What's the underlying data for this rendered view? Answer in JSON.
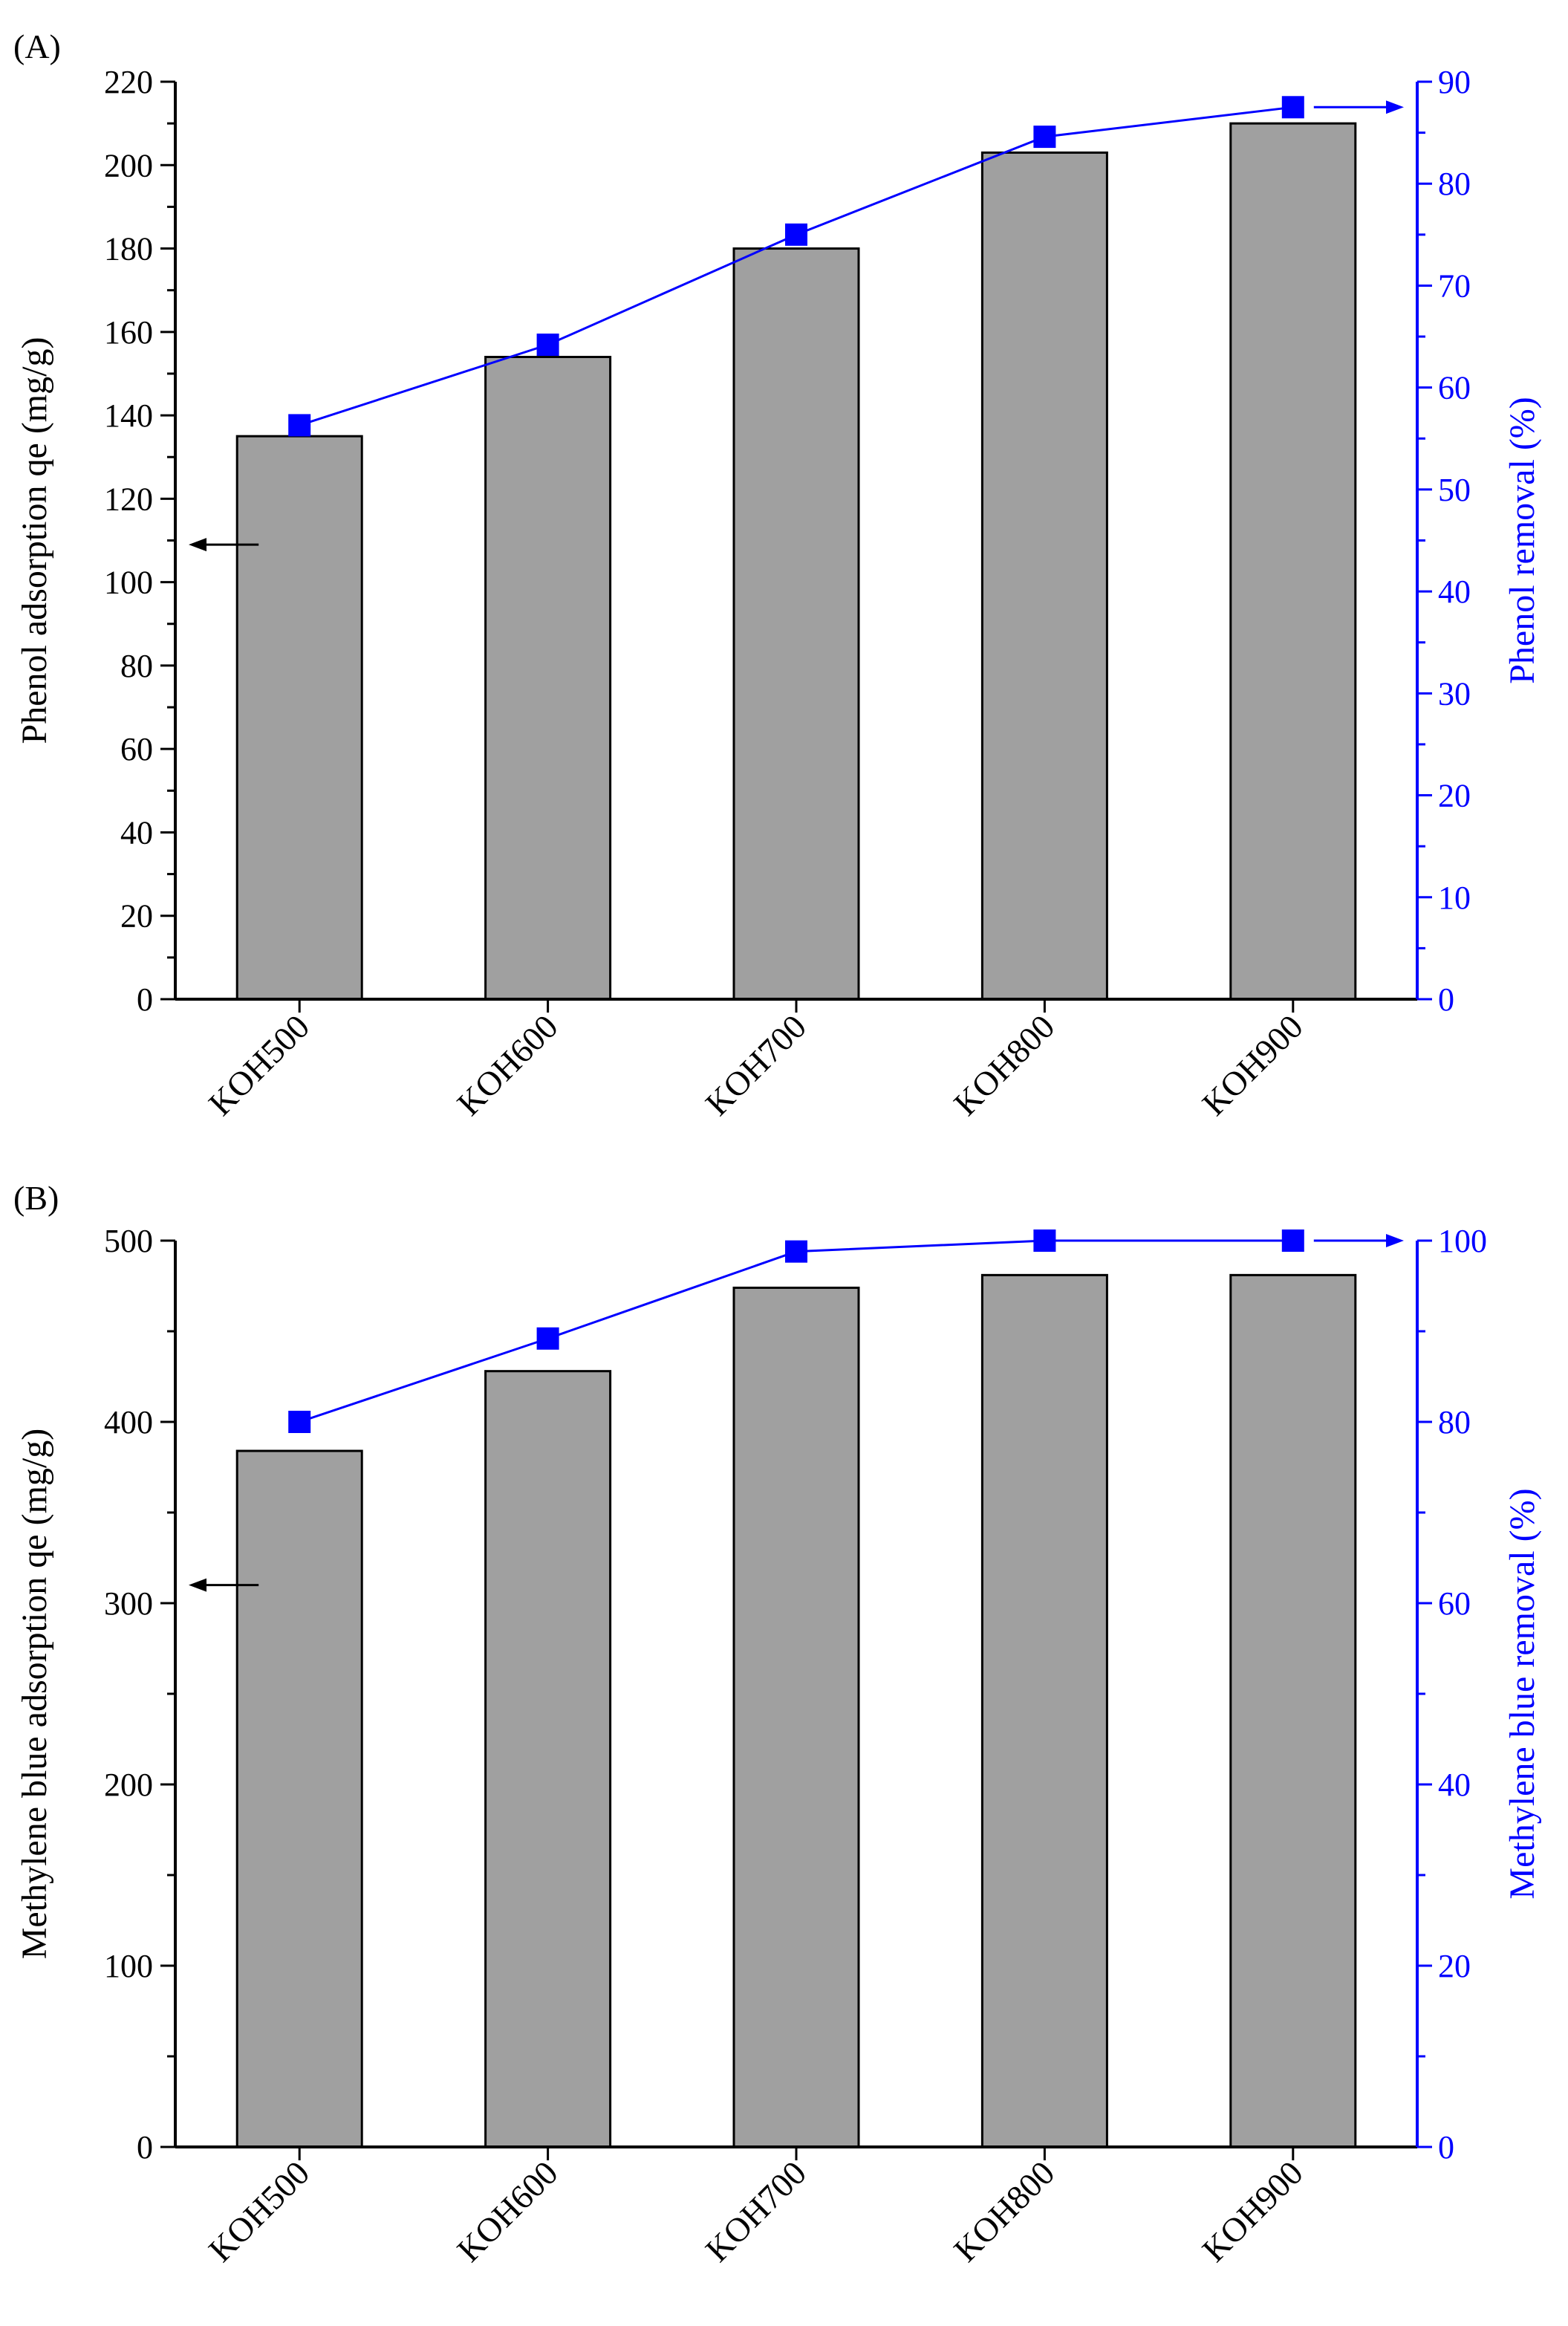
{
  "colors": {
    "bar": "#a0a0a0",
    "bar_edge": "#000000",
    "line": "#0000ff",
    "axis_left": "#000000",
    "axis_right": "#0000ff"
  },
  "chart_data": [
    {
      "panel_label": "(A)",
      "type": "bar",
      "categories": [
        "KOH500",
        "KOH600",
        "KOH700",
        "KOH800",
        "KOH900"
      ],
      "series": [
        {
          "name": "Phenol adsorption qe (mg/g)",
          "axis": "left",
          "type": "bar",
          "values": [
            135,
            154,
            180,
            203,
            210
          ]
        },
        {
          "name": "Phenol removal (%)",
          "axis": "right",
          "type": "line",
          "values": [
            56.3,
            64.2,
            75.0,
            84.6,
            87.5
          ]
        }
      ],
      "ylabel": "Phenol adsorption qe (mg/g)",
      "ylabel_right": "Phenol removal (%)",
      "ylim": [
        0,
        220
      ],
      "ylim_right": [
        0,
        90
      ],
      "yticks": [
        0,
        20,
        40,
        60,
        80,
        100,
        120,
        140,
        160,
        180,
        200,
        220
      ],
      "yticks_right": [
        0,
        10,
        20,
        30,
        40,
        50,
        60,
        70,
        80,
        90
      ],
      "annotations": [
        {
          "type": "arrow",
          "direction": "left",
          "at_category": 0,
          "at_value": 109,
          "axis": "left"
        },
        {
          "type": "arrow",
          "direction": "right",
          "at_category": 4,
          "at_value": 87.5,
          "axis": "right"
        }
      ]
    },
    {
      "panel_label": "(B)",
      "type": "bar",
      "categories": [
        "KOH500",
        "KOH600",
        "KOH700",
        "KOH800",
        "KOH900"
      ],
      "series": [
        {
          "name": "Methylene blue adsorption qe (mg/g)",
          "axis": "left",
          "type": "bar",
          "values": [
            384,
            428,
            474,
            481,
            481
          ]
        },
        {
          "name": "Methylene blue removal (%)",
          "axis": "right",
          "type": "line",
          "values": [
            80.0,
            89.2,
            98.8,
            100,
            100
          ]
        }
      ],
      "ylabel": "Methylene blue adsorption qe (mg/g)",
      "ylabel_right": "Methylene blue removal (%)",
      "ylim": [
        0,
        500
      ],
      "ylim_right": [
        0,
        100
      ],
      "yticks": [
        0,
        100,
        200,
        300,
        400,
        500
      ],
      "yticks_right": [
        0,
        20,
        40,
        60,
        80,
        100
      ],
      "annotations": [
        {
          "type": "arrow",
          "direction": "left",
          "at_category": 0,
          "at_value": 310,
          "axis": "left"
        },
        {
          "type": "arrow",
          "direction": "right",
          "at_category": 4,
          "at_value": 100,
          "axis": "right"
        }
      ]
    }
  ]
}
